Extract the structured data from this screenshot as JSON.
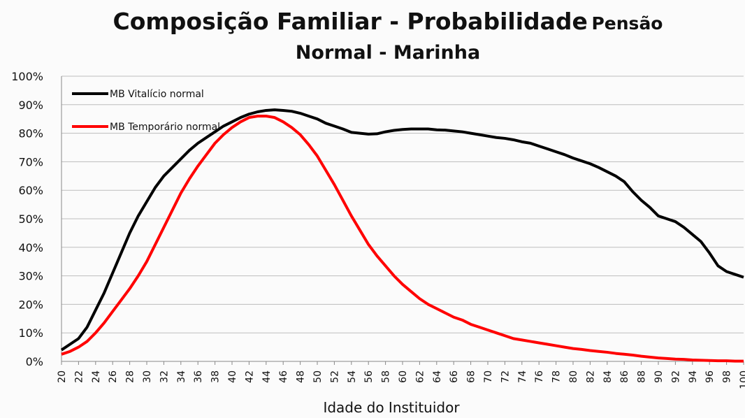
{
  "chart_data": {
    "type": "line",
    "title": [
      "Composição Familiar - Probabilidade",
      "Pensão"
    ],
    "subtitle": "Normal - Marinha",
    "x_label": "Idade do Instituidor",
    "x": [
      20,
      21,
      22,
      23,
      24,
      25,
      26,
      27,
      28,
      29,
      30,
      31,
      32,
      33,
      34,
      35,
      36,
      37,
      38,
      39,
      40,
      41,
      42,
      43,
      44,
      45,
      46,
      47,
      48,
      49,
      50,
      51,
      52,
      53,
      54,
      55,
      56,
      57,
      58,
      59,
      60,
      61,
      62,
      63,
      64,
      65,
      66,
      67,
      68,
      69,
      70,
      71,
      72,
      73,
      74,
      75,
      76,
      77,
      78,
      79,
      80,
      81,
      82,
      83,
      84,
      85,
      86,
      87,
      88,
      89,
      90,
      91,
      92,
      93,
      94,
      95,
      96,
      97,
      98,
      99,
      100
    ],
    "series": [
      {
        "name": "MB Vitalício normal",
        "color": "#000000",
        "values": [
          4,
          6,
          8,
          12,
          18,
          24,
          31,
          38,
          45,
          51,
          56,
          61,
          65,
          68,
          71,
          74,
          76.5,
          78.5,
          80.5,
          82.5,
          84,
          85.5,
          86.7,
          87.5,
          88,
          88.2,
          88,
          87.7,
          87,
          86,
          85,
          83.5,
          82.5,
          81.5,
          80.3,
          80,
          79.7,
          79.8,
          80.5,
          81,
          81.3,
          81.5,
          81.5,
          81.5,
          81.2,
          81.1,
          80.8,
          80.5,
          80,
          79.5,
          79,
          78.5,
          78.2,
          77.7,
          77,
          76.5,
          75.5,
          74.5,
          73.5,
          72.5,
          71.3,
          70.3,
          69.3,
          68,
          66.5,
          65,
          63,
          59.5,
          56.5,
          54,
          51,
          50,
          49,
          47,
          44.5,
          42,
          38,
          33.5,
          31.5,
          30.5,
          29.5
        ]
      },
      {
        "name": "MB Temporário normal",
        "color": "#ff0000",
        "values": [
          2.5,
          3.5,
          5,
          7,
          10,
          13.5,
          17.5,
          21.5,
          25.5,
          30,
          35,
          41,
          47,
          53,
          59,
          64,
          68.5,
          72.5,
          76.5,
          79.5,
          82,
          84,
          85.5,
          86,
          86,
          85.5,
          84,
          82,
          79.5,
          76,
          72,
          67,
          62,
          56.5,
          51,
          46,
          41,
          37,
          33.5,
          30,
          27,
          24.5,
          22,
          20,
          18.5,
          17,
          15.5,
          14.5,
          13,
          12,
          11,
          10,
          9,
          8,
          7.5,
          7,
          6.5,
          6,
          5.5,
          5,
          4.5,
          4.2,
          3.8,
          3.5,
          3.2,
          2.8,
          2.5,
          2.2,
          1.8,
          1.5,
          1.2,
          1,
          0.8,
          0.7,
          0.5,
          0.4,
          0.3,
          0.2,
          0.2,
          0.1,
          0.1
        ]
      }
    ],
    "xlim": [
      20,
      100
    ],
    "xticks": [
      20,
      22,
      24,
      26,
      28,
      30,
      32,
      34,
      36,
      38,
      40,
      42,
      44,
      46,
      48,
      50,
      52,
      54,
      56,
      58,
      60,
      62,
      64,
      66,
      68,
      70,
      72,
      74,
      76,
      78,
      80,
      82,
      84,
      86,
      88,
      90,
      92,
      94,
      96,
      98,
      100
    ],
    "ylim": [
      0,
      100
    ],
    "yticks": [
      {
        "value": 0,
        "label": "0%"
      },
      {
        "value": 10,
        "label": "10%"
      },
      {
        "value": 20,
        "label": "20%"
      },
      {
        "value": 30,
        "label": "30%"
      },
      {
        "value": 40,
        "label": "40%"
      },
      {
        "value": 50,
        "label": "50%"
      },
      {
        "value": 60,
        "label": "60%"
      },
      {
        "value": 70,
        "label": "70%"
      },
      {
        "value": 80,
        "label": "80%"
      },
      {
        "value": 90,
        "label": "90%"
      },
      {
        "value": 100,
        "label": "100%"
      }
    ],
    "grid": true,
    "legend": "upper left"
  }
}
